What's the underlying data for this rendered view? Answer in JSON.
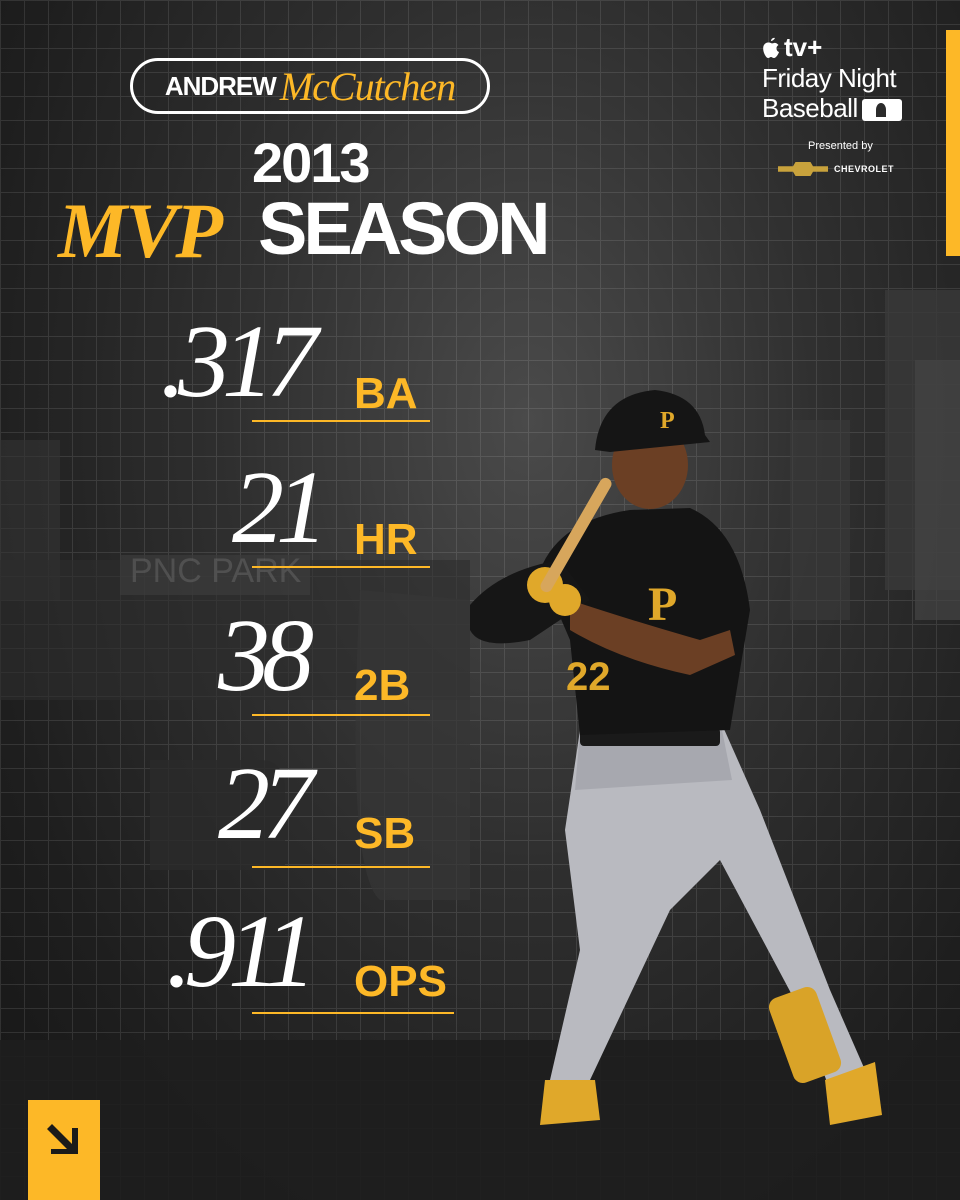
{
  "header": {
    "first_name": "ANDREW",
    "last_name": "McCutchen",
    "year": "2013",
    "title_highlight": "MVP",
    "title_rest": "SEASON"
  },
  "brand": {
    "service": "tv+",
    "line1": "Friday Night",
    "line2": "Baseball",
    "presented_by": "Presented by",
    "sponsor": "CHEVROLET"
  },
  "stats": [
    {
      "value": ".317",
      "label": "BA"
    },
    {
      "value": "21",
      "label": "HR"
    },
    {
      "value": "38",
      "label": "2B"
    },
    {
      "value": "27",
      "label": "SB"
    },
    {
      "value": ".911",
      "label": "OPS"
    }
  ],
  "background_text": "PNC PARK",
  "player_jersey_number": "22",
  "colors": {
    "gold": "#fdb827",
    "white": "#ffffff",
    "black": "#1a1a1a"
  },
  "icons": {
    "corner": "arrow-up-left-icon",
    "apple": "apple-icon",
    "mlb": "mlb-logo-icon",
    "chevy": "chevrolet-bowtie-icon"
  }
}
